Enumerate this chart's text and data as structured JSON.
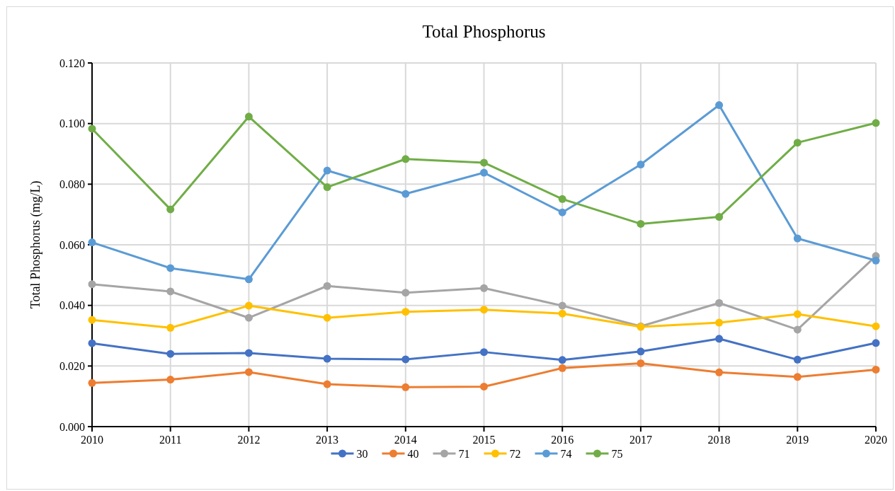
{
  "chart_data": {
    "type": "line",
    "title": "Total Phosphorus",
    "ylabel": "Total Phosphorus (mg/L)",
    "x": [
      2010,
      2011,
      2012,
      2013,
      2014,
      2015,
      2016,
      2017,
      2018,
      2019,
      2020
    ],
    "xlim": [
      2010,
      2020
    ],
    "xticks": [
      2010,
      2011,
      2012,
      2013,
      2014,
      2015,
      2016,
      2017,
      2018,
      2019,
      2020
    ],
    "ylim": [
      0,
      0.12
    ],
    "yticks": [
      {
        "value": 0,
        "label": "0.000"
      },
      {
        "value": 0.02,
        "label": "0.020"
      },
      {
        "value": 0.04,
        "label": "0.040"
      },
      {
        "value": 0.06,
        "label": "0.060"
      },
      {
        "value": 0.08,
        "label": "0.080"
      },
      {
        "value": 0.1,
        "label": "0.100"
      },
      {
        "value": 0.12,
        "label": "0.120"
      }
    ],
    "grid": true,
    "legend": "bottom",
    "marker": "circle",
    "line_style": "solid",
    "series": [
      {
        "name": "30",
        "color": "#4472c4",
        "values": [
          0.0275,
          0.024,
          0.0243,
          0.0224,
          0.0222,
          0.0246,
          0.022,
          0.0248,
          0.029,
          0.0221,
          0.0276
        ]
      },
      {
        "name": "40",
        "color": "#ed7d31",
        "values": [
          0.0144,
          0.0155,
          0.018,
          0.014,
          0.013,
          0.0132,
          0.0193,
          0.0209,
          0.0179,
          0.0164,
          0.0188
        ]
      },
      {
        "name": "71",
        "color": "#a5a5a5",
        "values": [
          0.047,
          0.0446,
          0.0359,
          0.0464,
          0.0442,
          0.0457,
          0.0399,
          0.0331,
          0.0408,
          0.032,
          0.0563
        ]
      },
      {
        "name": "72",
        "color": "#ffc000",
        "values": [
          0.0352,
          0.0326,
          0.0399,
          0.0359,
          0.0379,
          0.0386,
          0.0373,
          0.0329,
          0.0343,
          0.0371,
          0.0331
        ]
      },
      {
        "name": "74",
        "color": "#5b9bd5",
        "values": [
          0.0608,
          0.0523,
          0.0486,
          0.0845,
          0.0768,
          0.0838,
          0.0707,
          0.0865,
          0.1061,
          0.0621,
          0.0548
        ]
      },
      {
        "name": "75",
        "color": "#70ad47",
        "values": [
          0.0983,
          0.0717,
          0.1023,
          0.079,
          0.0883,
          0.0871,
          0.0751,
          0.0669,
          0.0692,
          0.0937,
          0.1002
        ]
      }
    ]
  }
}
